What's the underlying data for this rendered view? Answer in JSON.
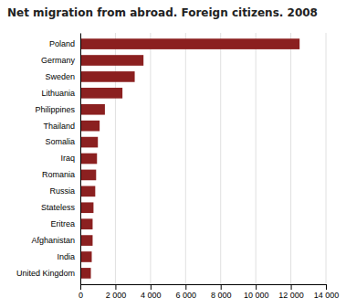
{
  "chart_data": {
    "type": "bar",
    "orientation": "horizontal",
    "title": "Net migration from abroad. Foreign citizens. 2008",
    "categories": [
      "United Kingdom",
      "India",
      "Afghanistan",
      "Eritrea",
      "Stateless",
      "Russia",
      "Romania",
      "Iraq",
      "Somalia",
      "Thailand",
      "Philippines",
      "Lithuania",
      "Sweden",
      "Germany",
      "Poland"
    ],
    "values": [
      600,
      650,
      700,
      700,
      750,
      850,
      900,
      950,
      1000,
      1100,
      1400,
      2400,
      3100,
      3600,
      12500
    ],
    "color": "#8B2020",
    "xlim": [
      0,
      14000
    ],
    "xticks": [
      0,
      {
        "value": 2000,
        "label": "2 000"
      },
      {
        "value": 4000,
        "label": "4 000"
      },
      {
        "value": 6000,
        "label": "6 000"
      },
      {
        "value": 8000,
        "label": "8 000"
      },
      {
        "value": 10000,
        "label": "10 000"
      },
      {
        "value": 12000,
        "label": "12 000"
      },
      {
        "value": 14000,
        "label": "14 000"
      }
    ],
    "grid": true
  }
}
